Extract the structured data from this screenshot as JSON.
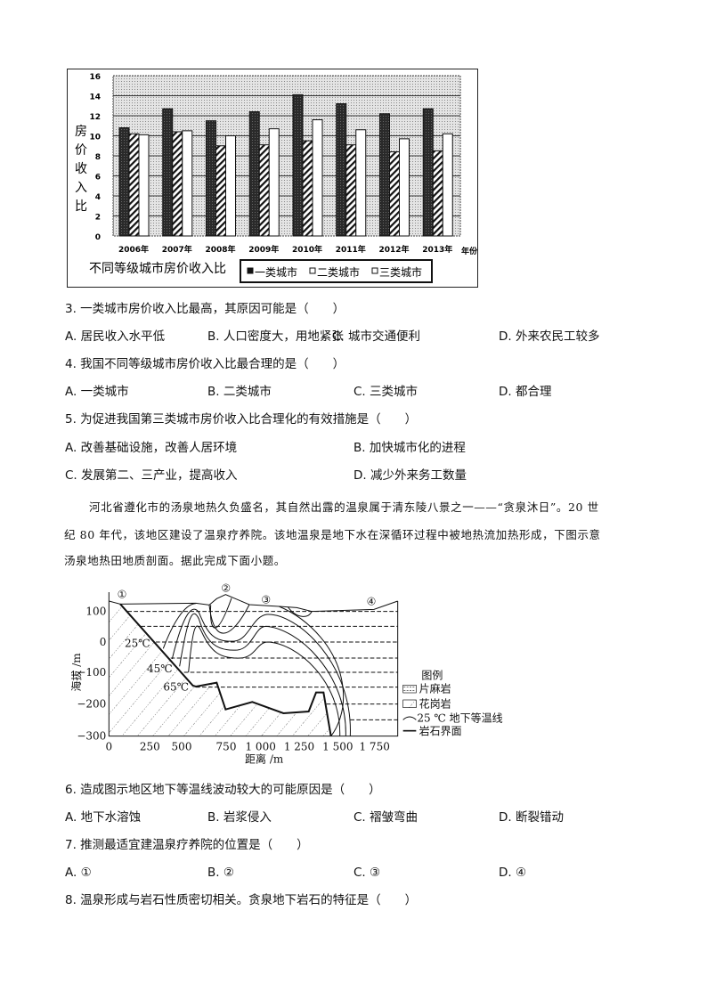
{
  "chart_data": {
    "type": "bar",
    "title": "不同等级城市房价收入比",
    "ylabel": "房价收入比",
    "xlabel": "年份",
    "ylim": [
      0,
      16
    ],
    "yticks": [
      "0",
      "2",
      "4",
      "6",
      "8",
      "10",
      "12",
      "14",
      "16"
    ],
    "categories": [
      "2006年",
      "2007年",
      "2008年",
      "2009年",
      "2010年",
      "2011年",
      "2012年",
      "2013年"
    ],
    "series": [
      {
        "name": "一类城市",
        "fill": "dark",
        "values": [
          10.8,
          12.7,
          11.5,
          12.4,
          14.1,
          13.2,
          12.2,
          12.7
        ]
      },
      {
        "name": "二类城市",
        "fill": "hatched",
        "values": [
          10.2,
          10.4,
          9.0,
          9.1,
          9.5,
          9.1,
          8.4,
          8.5
        ]
      },
      {
        "name": "三类城市",
        "fill": "white",
        "values": [
          10.1,
          10.5,
          10.0,
          10.7,
          11.6,
          10.6,
          9.7,
          10.2
        ]
      }
    ],
    "grid": true,
    "legend": "bottom-right"
  },
  "questions": [
    {
      "stem": "3. 一类城市房价收入比最高，其原因可能是（　　）",
      "options": [
        "A. 居民收入水平低",
        "B. 人口密度大，用地紧张",
        "C. 城市交通便利",
        "D. 外来农民工较多"
      ]
    },
    {
      "stem": "4. 我国不同等级城市房价收入比最合理的是（　　）",
      "options": [
        "A. 一类城市",
        "B. 二类城市",
        "C. 三类城市",
        "D. 都合理"
      ]
    },
    {
      "stem": "5. 为促进我国第三类城市房价收入比合理化的有效措施是（　　）",
      "options": [
        "A. 改善基础设施，改善人居环境",
        "B. 加快城市化的进程",
        "C. 发展第二、三产业，提高收入",
        "D. 减少外来务工数量"
      ]
    },
    {
      "stem": "6. 造成图示地区地下等温线波动较大的可能原因是（　　）",
      "options": [
        "A. 地下水溶蚀",
        "B. 岩浆侵入",
        "C. 褶皱弯曲",
        "D. 断裂错动"
      ]
    },
    {
      "stem": "7. 推测最适宜建温泉疗养院的位置是（　　）",
      "options": [
        "A. ①",
        "B. ②",
        "C. ③",
        "D. ④"
      ]
    },
    {
      "stem": "8. 温泉形成与岩石性质密切相关。贪泉地下岩石的特征是（　　）"
    }
  ],
  "passage": [
    "河北省遵化市的汤泉地热久负盛名，其自然出露的温泉属于清东陵八景之一——“贪泉沐日”。20 世",
    "纪 80 年代，该地区建设了温泉疗养院。该地温泉是地下水在深循环过程中被地热流加热形成，下图示意",
    "汤泉地热田地质剖面。据此完成下面小题。"
  ],
  "diagram": {
    "ylabel": "海拔 /m",
    "xlabel": "距离 /m",
    "yticks": [
      "100",
      "0",
      "−100",
      "−200",
      "−300"
    ],
    "xticks": [
      "0",
      "250",
      "500",
      "750",
      "1 000",
      "1 250",
      "1 500",
      "1 750"
    ],
    "sites": [
      "①",
      "②",
      "③",
      "④"
    ],
    "isotherm_labels": [
      "25℃",
      "45℃",
      "65℃"
    ],
    "legend": {
      "title": "图例",
      "items": [
        "片麻岩",
        "花岗岩",
        "25 ℃ 地下等温线",
        "岩石界面"
      ]
    }
  }
}
